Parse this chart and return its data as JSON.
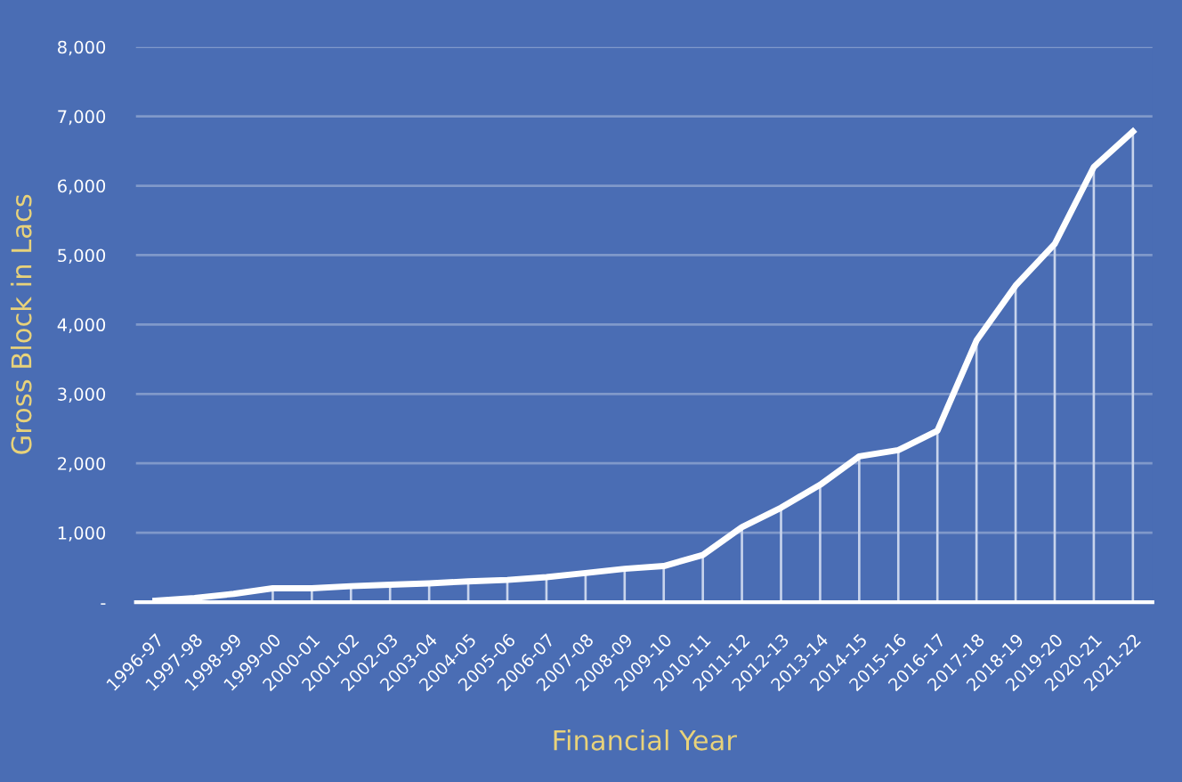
{
  "chart_data": {
    "type": "line",
    "xlabel": "Financial Year",
    "ylabel": "Gross Block in Lacs",
    "categories": [
      "1996-97",
      "1997-98",
      "1998-99",
      "1999-00",
      "2000-01",
      "2001-02",
      "2002-03",
      "2003-04",
      "2004-05",
      "2005-06",
      "2006-07",
      "2007-08",
      "2008-09",
      "2009-10",
      "2010-11",
      "2011-12",
      "2012-13",
      "2013-14",
      "2014-15",
      "2015-16",
      "2016-17",
      "2017-18",
      "2018-19",
      "2019-20",
      "2020-21",
      "2021-22"
    ],
    "series": [
      {
        "color": "#ffffff",
        "values": [
          20,
          60,
          120,
          200,
          200,
          230,
          250,
          270,
          300,
          320,
          360,
          420,
          480,
          520,
          680,
          1080,
          1360,
          1690,
          2100,
          2190,
          2470,
          3770,
          4560,
          5160,
          6270,
          6780
        ]
      },
      {
        "type": "bar",
        "color": "#c8d4ec",
        "values": [
          null,
          null,
          null,
          200,
          200,
          230,
          250,
          270,
          300,
          320,
          360,
          420,
          480,
          520,
          680,
          1080,
          1360,
          1690,
          2100,
          2190,
          2470,
          3770,
          4560,
          5160,
          6270,
          6780
        ]
      }
    ],
    "ylim": [
      0,
      8000
    ],
    "yticks": [
      {
        "value": 0,
        "label": "-"
      },
      {
        "value": 1000,
        "label": "1,000"
      },
      {
        "value": 2000,
        "label": "2,000"
      },
      {
        "value": 3000,
        "label": "3,000"
      },
      {
        "value": 4000,
        "label": "4,000"
      },
      {
        "value": 5000,
        "label": "5,000"
      },
      {
        "value": 6000,
        "label": "6,000"
      },
      {
        "value": 7000,
        "label": "7,000"
      },
      {
        "value": 8000,
        "label": "8,000"
      }
    ],
    "grid": "y",
    "legend": false,
    "marker": "none",
    "line_style": "solid"
  }
}
